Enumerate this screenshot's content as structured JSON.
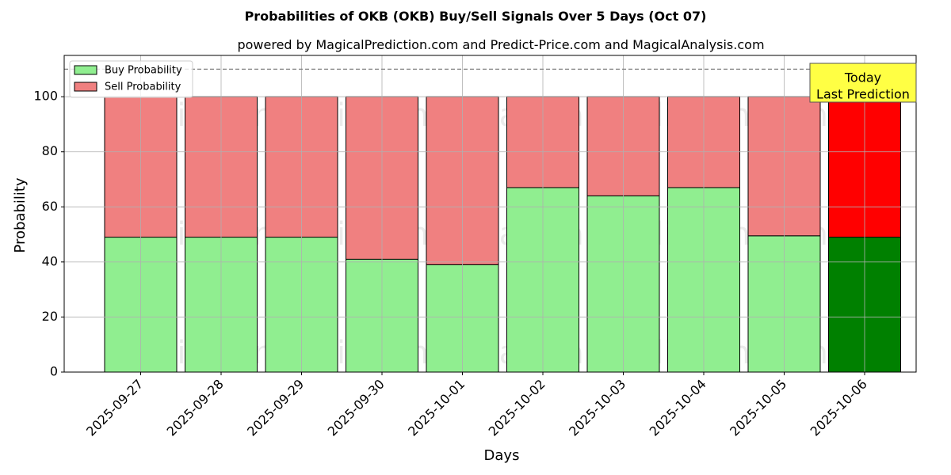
{
  "chart_data": {
    "type": "bar",
    "title": "Probabilities of OKB (OKB) Buy/Sell Signals Over 5 Days (Oct 07)",
    "subtitle": "powered by MagicalPrediction.com and Predict-Price.com and MagicalAnalysis.com",
    "xlabel": "Days",
    "ylabel": "Probability",
    "ylim": [
      0,
      115
    ],
    "yticks": [
      0,
      20,
      40,
      60,
      80,
      100
    ],
    "grid": true,
    "legend_position": "top-left",
    "reference_line": 110,
    "categories": [
      "2025-09-27",
      "2025-09-28",
      "2025-09-29",
      "2025-09-30",
      "2025-10-01",
      "2025-10-02",
      "2025-10-03",
      "2025-10-04",
      "2025-10-05",
      "2025-10-06"
    ],
    "series": [
      {
        "name": "Buy Probability",
        "color": "#90ee90",
        "values": [
          49,
          49,
          49,
          41,
          39,
          67,
          64,
          67,
          49.5,
          49
        ]
      },
      {
        "name": "Sell Probability",
        "color": "#f08080",
        "values": [
          51,
          51,
          51,
          59,
          61,
          33,
          36,
          33,
          50.5,
          51
        ]
      }
    ],
    "highlight": {
      "index": 9,
      "buy_color": "#008000",
      "sell_color": "#ff0000"
    },
    "annotation": {
      "lines": [
        "Today",
        "Last Prediction"
      ],
      "background": "#ffff44"
    },
    "watermarks": [
      "MagicalAnalysis.com",
      "MagicalPrediction.com"
    ]
  }
}
